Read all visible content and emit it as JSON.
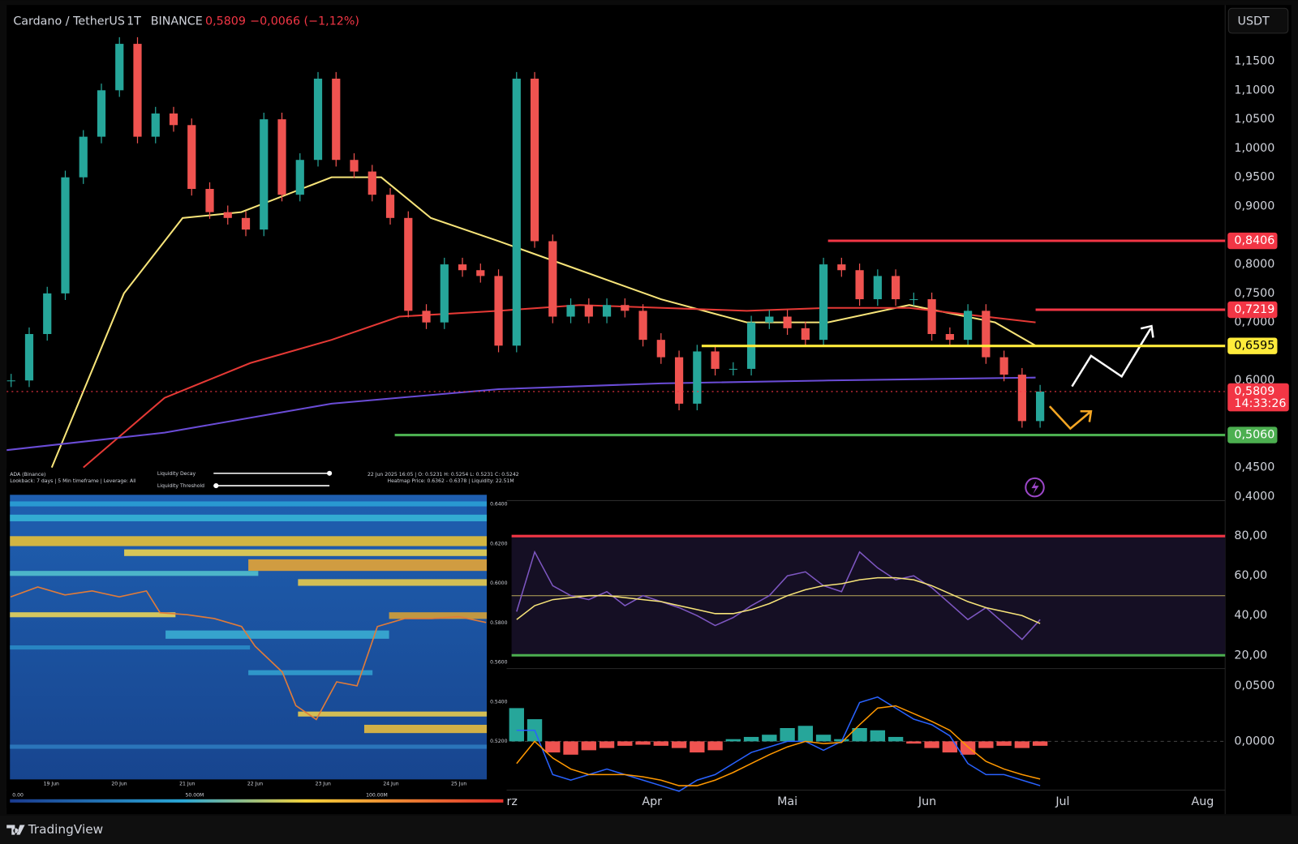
{
  "header": {
    "symbol": "Cardano / TetherUS",
    "interval": "1T",
    "exchange": "BINANCE",
    "price": "0,5809",
    "change": "−0,0066 (−1,12%)",
    "currency": "USDT"
  },
  "footer": {
    "brand": "TradingView"
  },
  "chart_data": [
    {
      "type": "candlestick",
      "x": [
        -142,
        -138,
        -134,
        -130,
        -126,
        -122,
        -118,
        -114,
        -110,
        -106,
        -102,
        -98,
        -94,
        -90,
        -86,
        -82,
        -78,
        -74,
        -70,
        -66,
        -62,
        -58,
        -54,
        -50,
        -46,
        -42,
        -38,
        -34,
        -30,
        -26,
        -22,
        -18,
        -14,
        -10,
        -6,
        -2,
        2,
        6,
        10,
        14,
        18,
        22,
        26,
        30,
        34,
        38,
        42,
        46,
        50,
        54,
        58,
        62,
        66,
        70,
        74,
        78,
        82,
        86
      ],
      "values": [
        0.6,
        0.68,
        0.75,
        0.95,
        1.02,
        1.1,
        1.18,
        1.02,
        1.06,
        1.04,
        0.93,
        0.89,
        0.88,
        0.86,
        1.05,
        0.92,
        0.98,
        1.12,
        0.98,
        0.96,
        0.92,
        0.88,
        0.72,
        0.7,
        0.8,
        0.79,
        0.78,
        0.66,
        1.12,
        0.84,
        0.71,
        0.73,
        0.71,
        0.73,
        0.72,
        0.67,
        0.64,
        0.56,
        0.65,
        0.62,
        0.62,
        0.7,
        0.71,
        0.69,
        0.67,
        0.8,
        0.79,
        0.74,
        0.78,
        0.74,
        0.74,
        0.68,
        0.67,
        0.72,
        0.64,
        0.61,
        0.53,
        0.5809
      ],
      "up_color": "#26a69a",
      "down_color": "#ef5350",
      "xlim": [
        -143,
        127
      ],
      "xticks": [
        {
          "value": -31,
          "label": "rz"
        },
        {
          "value": 0,
          "label": "Apr"
        },
        {
          "value": 30,
          "label": "Mai"
        },
        {
          "value": 61,
          "label": "Jun"
        },
        {
          "value": 91,
          "label": "Jul"
        },
        {
          "value": 122,
          "label": "Aug"
        }
      ],
      "ylim": [
        0.393,
        1.244
      ],
      "yticks": [
        {
          "value": 1.15,
          "label": "1,1500"
        },
        {
          "value": 1.1,
          "label": "1,1000"
        },
        {
          "value": 1.05,
          "label": "1,0500"
        },
        {
          "value": 1.0,
          "label": "1,0000"
        },
        {
          "value": 0.95,
          "label": "0,9500"
        },
        {
          "value": 0.9,
          "label": "0,9000"
        },
        {
          "value": 0.8,
          "label": "0,8000"
        },
        {
          "value": 0.75,
          "label": "0,7500"
        },
        {
          "value": 0.7,
          "label": "0,7000"
        },
        {
          "value": 0.6,
          "label": "0,6000"
        },
        {
          "value": 0.45,
          "label": "0,4500"
        },
        {
          "value": 0.4,
          "label": "0,4000"
        }
      ],
      "lines": [
        {
          "color": "#f7e479",
          "x": [
            -133,
            -117,
            -104,
            -91,
            -71,
            -60,
            -49,
            -34,
            -16,
            2,
            21,
            39,
            57,
            76,
            85
          ],
          "values": [
            0.45,
            0.75,
            0.88,
            0.89,
            0.95,
            0.95,
            0.88,
            0.84,
            0.79,
            0.74,
            0.7,
            0.7,
            0.73,
            0.7,
            0.66
          ]
        },
        {
          "color": "#e53935",
          "x": [
            -126,
            -108,
            -89,
            -71,
            -56,
            -34,
            -16,
            21,
            39,
            57,
            85
          ],
          "values": [
            0.45,
            0.57,
            0.63,
            0.67,
            0.71,
            0.72,
            0.73,
            0.72,
            0.725,
            0.725,
            0.7
          ]
        },
        {
          "color": "#6a4cd6",
          "x": [
            -143,
            -108,
            -71,
            -34,
            2,
            39,
            85
          ],
          "values": [
            0.48,
            0.51,
            0.56,
            0.585,
            0.595,
            0.6,
            0.605
          ]
        }
      ],
      "levels": [
        {
          "value": 0.8406,
          "label": "0,8406",
          "color": "#f23645",
          "from": 39
        },
        {
          "value": 0.7219,
          "label": "0,7219",
          "color": "#f23645",
          "from": 85
        },
        {
          "value": 0.6595,
          "label": "0,6595",
          "color": "#ffeb3b",
          "from": 11
        },
        {
          "value": 0.506,
          "label": "0,5060",
          "color": "#4caf50",
          "from": -57
        }
      ],
      "last": {
        "value": 0.5809,
        "label": "0,5809",
        "countdown": "14:33:26",
        "color": "#f23645"
      }
    },
    {
      "type": "line",
      "x": [
        -30,
        -26,
        -22,
        -18,
        -14,
        -10,
        -6,
        -2,
        2,
        6,
        10,
        14,
        18,
        22,
        26,
        30,
        34,
        38,
        42,
        46,
        50,
        54,
        58,
        62,
        66,
        70,
        74,
        78,
        82,
        86
      ],
      "ylim": [
        14.6,
        97
      ],
      "yticks": [
        {
          "value": 80,
          "label": "80,00"
        },
        {
          "value": 60,
          "label": "60,00"
        },
        {
          "value": 40,
          "label": "40,00"
        },
        {
          "value": 20,
          "label": "20,00"
        }
      ],
      "levels": [
        {
          "value": 80,
          "color": "#f23645"
        },
        {
          "value": 50,
          "color": "#b8a75a"
        },
        {
          "value": 20,
          "color": "#4caf50"
        }
      ],
      "band_color": "#150f24",
      "series": [
        {
          "color": "#7e57c2",
          "values": [
            42,
            72,
            55,
            50,
            48,
            52,
            45,
            50,
            47,
            44,
            40,
            35,
            39,
            45,
            50,
            60,
            62,
            55,
            52,
            72,
            64,
            58,
            60,
            54,
            46,
            38,
            44,
            36,
            28,
            38
          ]
        },
        {
          "color": "#f7e479",
          "values": [
            38,
            45,
            48,
            49,
            50,
            50,
            49,
            48,
            47,
            45,
            43,
            41,
            41,
            43,
            46,
            50,
            53,
            55,
            56,
            58,
            59,
            59,
            58,
            55,
            51,
            47,
            44,
            42,
            40,
            36
          ]
        }
      ]
    },
    {
      "type": "macd",
      "x": [
        -30,
        -26,
        -22,
        -18,
        -14,
        -10,
        -6,
        -2,
        2,
        6,
        10,
        14,
        18,
        22,
        26,
        30,
        34,
        38,
        42,
        46,
        50,
        54,
        58,
        62,
        66,
        70,
        74,
        78,
        82,
        86
      ],
      "ylim": [
        -0.044,
        0.0627
      ],
      "yticks": [
        {
          "value": 0.05,
          "label": "0,0500"
        },
        {
          "value": 0,
          "label": "0,0000"
        }
      ],
      "histogram": [
        0.03,
        0.02,
        -0.01,
        -0.012,
        -0.008,
        -0.006,
        -0.004,
        -0.003,
        -0.004,
        -0.006,
        -0.01,
        -0.008,
        0.002,
        0.004,
        0.006,
        0.012,
        0.014,
        0.006,
        0.002,
        0.012,
        0.01,
        0.004,
        -0.002,
        -0.006,
        -0.01,
        -0.012,
        -0.006,
        -0.004,
        -0.006,
        -0.004
      ],
      "up_color": "#26a69a",
      "down_color": "#ef5350",
      "series": [
        {
          "color": "#2962ff",
          "values": [
            0.01,
            0.01,
            -0.03,
            -0.035,
            -0.03,
            -0.025,
            -0.03,
            -0.035,
            -0.04,
            -0.045,
            -0.035,
            -0.03,
            -0.02,
            -0.01,
            -0.005,
            0,
            0,
            -0.008,
            0,
            0.035,
            0.04,
            0.03,
            0.02,
            0.015,
            0.005,
            -0.02,
            -0.03,
            -0.03,
            -0.035,
            -0.04
          ]
        },
        {
          "color": "#ff9800",
          "values": [
            -0.02,
            0,
            -0.015,
            -0.025,
            -0.03,
            -0.03,
            -0.03,
            -0.032,
            -0.035,
            -0.04,
            -0.04,
            -0.035,
            -0.028,
            -0.02,
            -0.012,
            -0.005,
            0,
            -0.002,
            -0.001,
            0.015,
            0.03,
            0.032,
            0.025,
            0.018,
            0.01,
            -0.005,
            -0.018,
            -0.025,
            -0.03,
            -0.034
          ]
        }
      ]
    },
    {
      "type": "heatmap",
      "title": "ADA (Binance)",
      "settings": "Lookback: 7 days | 5 Min timeframe | Leverage: All",
      "decay_label": "Liquidity Decay",
      "threshold_label": "Liquidity Threshold",
      "ohlc": "22 Jun 2025 16:05 | O: 0.5231 H: 0.5254 L: 0.5231 C: 0.5242",
      "info": "Heatmap Price: 0.6362 - 0.6378 | Liquidity: 22.51M",
      "x": [
        -0.6,
        -0.2,
        0.2,
        0.6,
        1.0,
        1.4,
        1.6,
        2.0,
        2.4,
        2.8,
        3.0,
        3.4,
        3.6,
        3.9,
        4.2,
        4.5,
        4.8,
        5.2,
        5.6,
        6.0,
        6.4
      ],
      "values": [
        0.593,
        0.598,
        0.594,
        0.596,
        0.593,
        0.596,
        0.585,
        0.584,
        0.582,
        0.578,
        0.568,
        0.555,
        0.538,
        0.531,
        0.55,
        0.548,
        0.578,
        0.582,
        0.582,
        0.583,
        0.58
      ],
      "color": "#e07b39",
      "xlim": [
        -0.61,
        6.41
      ],
      "xticks": [
        {
          "value": 0,
          "label": "19 Jun"
        },
        {
          "value": 1,
          "label": "20 Jun"
        },
        {
          "value": 2,
          "label": "21 Jun"
        },
        {
          "value": 3,
          "label": "22 Jun"
        },
        {
          "value": 4,
          "label": "23 Jun"
        },
        {
          "value": 5,
          "label": "24 Jun"
        },
        {
          "value": 6,
          "label": "25 Jun"
        }
      ],
      "ylim": [
        0.5007,
        0.6446
      ],
      "yticks": [
        {
          "value": 0.64,
          "label": "0.6400"
        },
        {
          "value": 0.62,
          "label": "0.6200"
        },
        {
          "value": 0.6,
          "label": "0.6000"
        },
        {
          "value": 0.58,
          "label": "0.5800"
        },
        {
          "value": 0.56,
          "label": "0.5600"
        },
        {
          "value": 0.54,
          "label": "0.5400"
        },
        {
          "value": 0.52,
          "label": "0.5200"
        }
      ],
      "scale_lim": [
        0,
        134500000
      ],
      "scale_ticks": [
        {
          "value": 0,
          "label": "0.00"
        },
        {
          "value": 50000000,
          "label": "50.00M"
        },
        {
          "value": 100000000,
          "label": "100.00M"
        }
      ]
    }
  ]
}
